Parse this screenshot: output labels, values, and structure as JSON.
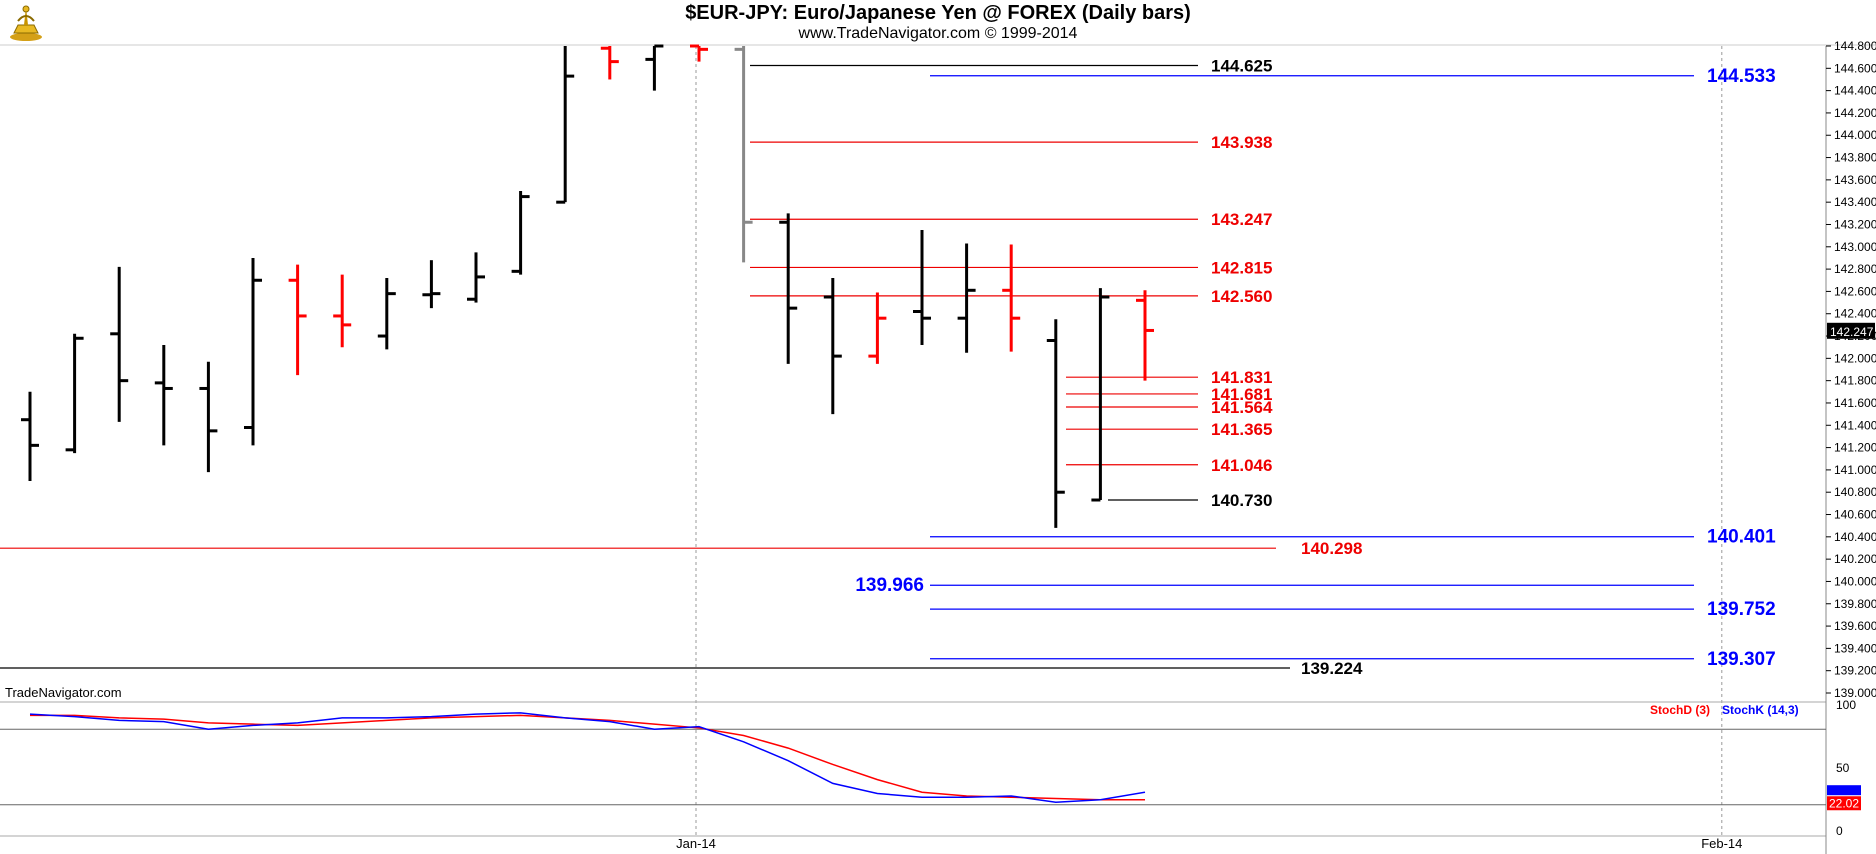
{
  "header": {
    "title": "$EUR-JPY:  Euro/Japanese Yen @ FOREX  (Daily bars)",
    "subtitle": "www.TradeNavigator.com © 1999-2014"
  },
  "watermark": "TradeNavigator.com",
  "colors": {
    "up_bar": "#000000",
    "down_bar": "#ff0000",
    "black_level": "#000000",
    "red_level": "#ee0000",
    "blue_level": "#0000ff",
    "stoch_d": "#ff0000",
    "stoch_k": "#0000ff",
    "grid": "#999999",
    "price_marker_bg": "#000000"
  },
  "chart_data": [
    {
      "type": "ohlc",
      "title": "$EUR-JPY:  Euro/Japanese Yen @ FOREX  (Daily bars)",
      "y_range": [
        139.0,
        144.8
      ],
      "y_ticks": [
        "139.000",
        "139.200",
        "139.400",
        "139.600",
        "139.800",
        "140.000",
        "140.200",
        "140.400",
        "140.600",
        "140.800",
        "141.000",
        "141.200",
        "141.400",
        "141.600",
        "141.800",
        "142.000",
        "142.200",
        "142.400",
        "142.600",
        "142.800",
        "143.000",
        "143.200",
        "143.400",
        "143.600",
        "143.800",
        "144.000",
        "144.200",
        "144.400",
        "144.600",
        "144.800"
      ],
      "x_labels": [
        {
          "label": "Jan-14",
          "bar_index": 15
        },
        {
          "label": "Feb-14",
          "bar_index": 38
        }
      ],
      "last_price": "142.247",
      "bars": [
        {
          "o": 141.45,
          "h": 141.7,
          "l": 140.9,
          "c": 141.22,
          "color": "black"
        },
        {
          "o": 141.18,
          "h": 142.22,
          "l": 141.15,
          "c": 142.18,
          "color": "black"
        },
        {
          "o": 142.22,
          "h": 142.82,
          "l": 141.43,
          "c": 141.8,
          "color": "black"
        },
        {
          "o": 141.78,
          "h": 142.12,
          "l": 141.22,
          "c": 141.73,
          "color": "black"
        },
        {
          "o": 141.73,
          "h": 141.97,
          "l": 140.98,
          "c": 141.35,
          "color": "black"
        },
        {
          "o": 141.38,
          "h": 142.9,
          "l": 141.22,
          "c": 142.7,
          "color": "black"
        },
        {
          "o": 142.7,
          "h": 142.84,
          "l": 141.85,
          "c": 142.38,
          "color": "red"
        },
        {
          "o": 142.38,
          "h": 142.75,
          "l": 142.1,
          "c": 142.3,
          "color": "red"
        },
        {
          "o": 142.2,
          "h": 142.72,
          "l": 142.08,
          "c": 142.58,
          "color": "black"
        },
        {
          "o": 142.57,
          "h": 142.88,
          "l": 142.45,
          "c": 142.58,
          "color": "black"
        },
        {
          "o": 142.53,
          "h": 142.95,
          "l": 142.5,
          "c": 142.73,
          "color": "black"
        },
        {
          "o": 142.78,
          "h": 143.5,
          "l": 142.75,
          "c": 143.45,
          "color": "black"
        },
        {
          "o": 143.4,
          "h": 144.8,
          "l": 143.4,
          "c": 144.53,
          "color": "black"
        },
        {
          "o": 144.78,
          "h": 144.8,
          "l": 144.5,
          "c": 144.66,
          "color": "red"
        },
        {
          "o": 144.68,
          "h": 144.8,
          "l": 144.4,
          "c": 144.8,
          "color": "black"
        },
        {
          "o": 144.8,
          "h": 144.8,
          "l": 144.66,
          "c": 144.77,
          "color": "red"
        },
        {
          "o": 144.77,
          "h": 144.8,
          "l": 142.86,
          "c": 143.22,
          "color": "gray"
        },
        {
          "o": 143.22,
          "h": 143.3,
          "l": 141.95,
          "c": 142.45,
          "color": "black"
        },
        {
          "o": 142.55,
          "h": 142.72,
          "l": 141.5,
          "c": 142.02,
          "color": "black"
        },
        {
          "o": 142.02,
          "h": 142.59,
          "l": 141.95,
          "c": 142.36,
          "color": "red"
        },
        {
          "o": 142.42,
          "h": 143.15,
          "l": 142.12,
          "c": 142.36,
          "color": "black"
        },
        {
          "o": 142.36,
          "h": 143.03,
          "l": 142.05,
          "c": 142.61,
          "color": "black"
        },
        {
          "o": 142.61,
          "h": 143.02,
          "l": 142.06,
          "c": 142.36,
          "color": "red"
        },
        {
          "o": 142.16,
          "h": 142.35,
          "l": 140.48,
          "c": 140.8,
          "color": "black"
        },
        {
          "o": 140.73,
          "h": 142.63,
          "l": 140.73,
          "c": 142.55,
          "color": "black"
        },
        {
          "o": 142.52,
          "h": 142.61,
          "l": 141.8,
          "c": 142.25,
          "color": "red"
        }
      ],
      "levels": [
        {
          "value": "144.625",
          "color": "black"
        },
        {
          "value": "144.533",
          "color": "blue"
        },
        {
          "value": "143.938",
          "color": "red"
        },
        {
          "value": "143.247",
          "color": "red"
        },
        {
          "value": "142.815",
          "color": "red"
        },
        {
          "value": "142.560",
          "color": "red"
        },
        {
          "value": "141.831",
          "color": "red"
        },
        {
          "value": "141.681",
          "color": "red"
        },
        {
          "value": "141.564",
          "color": "red"
        },
        {
          "value": "141.365",
          "color": "red"
        },
        {
          "value": "141.046",
          "color": "red"
        },
        {
          "value": "140.730",
          "color": "black"
        },
        {
          "value": "140.401",
          "color": "blue"
        },
        {
          "value": "140.298",
          "color": "red"
        },
        {
          "value": "139.966",
          "color": "blue"
        },
        {
          "value": "139.752",
          "color": "blue"
        },
        {
          "value": "139.307",
          "color": "blue"
        },
        {
          "value": "139.224",
          "color": "black"
        }
      ]
    },
    {
      "type": "line",
      "y_range": [
        0,
        100
      ],
      "y_ticks": [
        "0",
        "50",
        "100"
      ],
      "reference_lines": [
        80,
        20
      ],
      "last_values": [
        "22.02"
      ],
      "series": [
        {
          "name": "StochD (3)",
          "color": "red",
          "values": [
            91,
            91,
            89,
            88,
            85,
            84,
            83,
            85,
            87,
            89,
            90,
            91,
            89,
            87,
            84,
            81,
            75,
            65,
            52,
            40,
            30,
            27,
            26,
            25,
            24,
            24
          ]
        },
        {
          "name": "StochK (14,3)",
          "color": "blue",
          "values": [
            92,
            90,
            87,
            86,
            80,
            83,
            85,
            89,
            89,
            90,
            92,
            93,
            89,
            86,
            80,
            82,
            70,
            55,
            37,
            29,
            26,
            26,
            27,
            22,
            24,
            30
          ]
        }
      ]
    }
  ]
}
